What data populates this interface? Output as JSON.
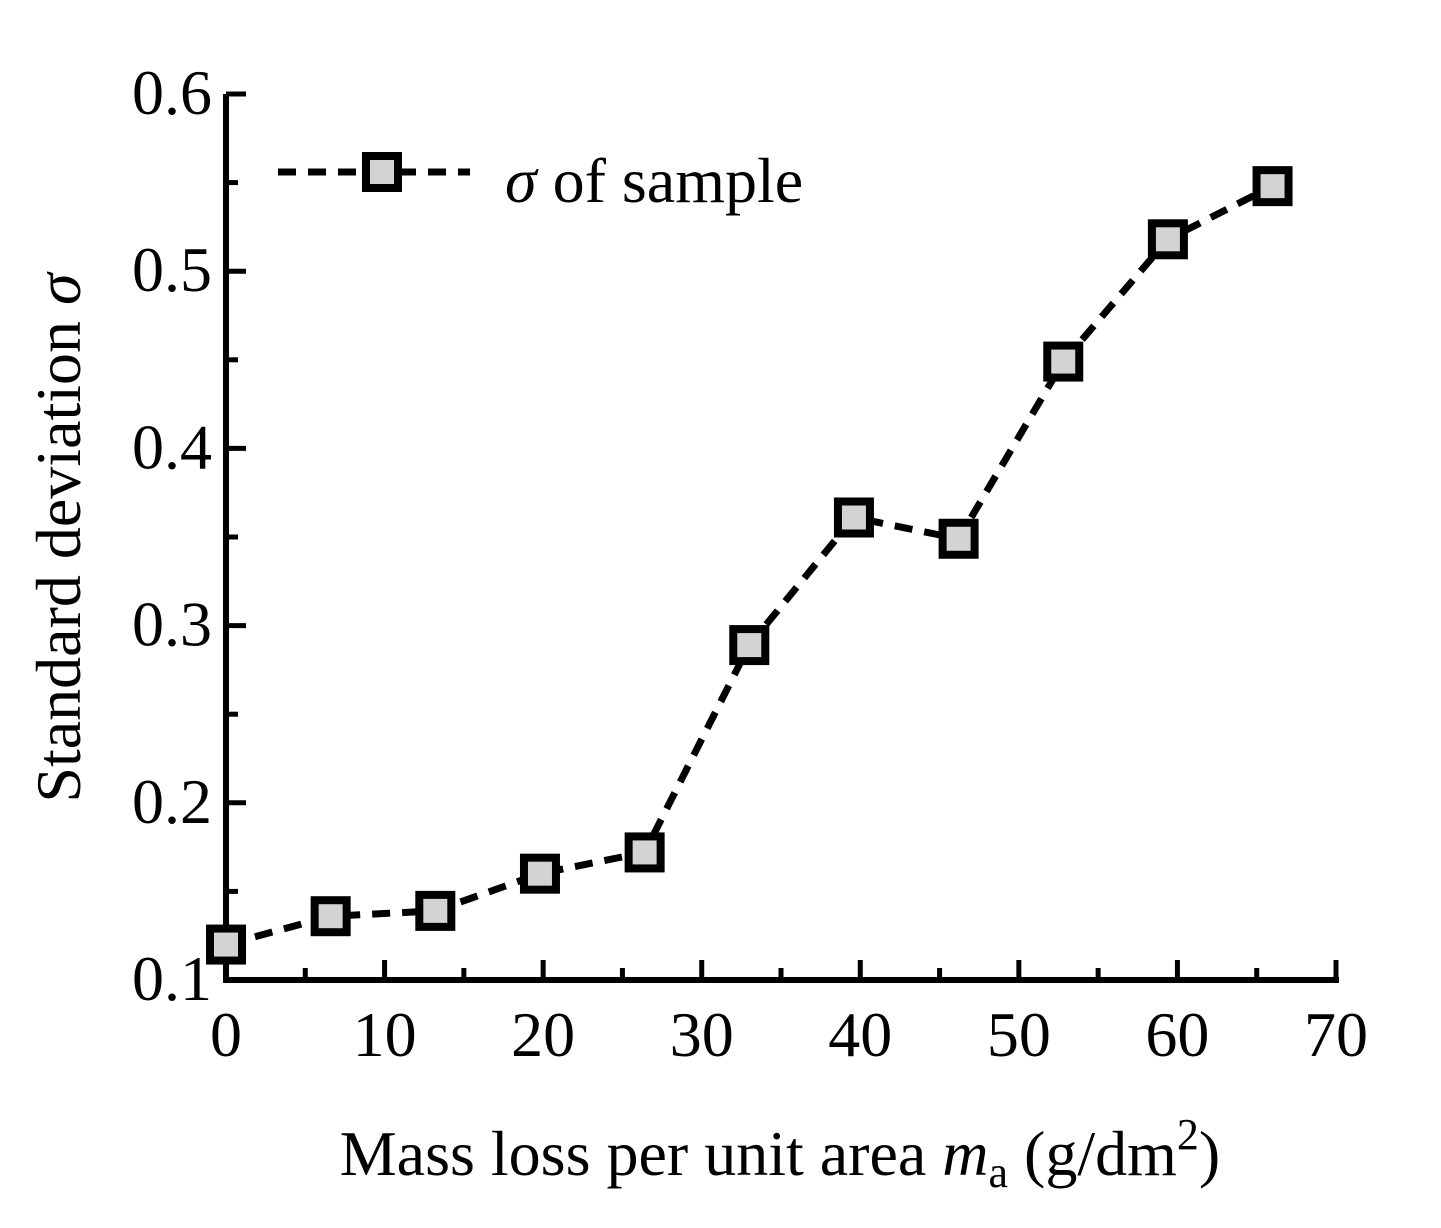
{
  "chart_data": {
    "type": "line",
    "title": "",
    "xlabel": {
      "main": "Mass loss per unit area ",
      "var": "m",
      "sub": "a",
      "unit_open": " (g/dm",
      "sup": "2",
      "unit_close": ")"
    },
    "ylabel": {
      "main": "Standard deviation ",
      "var": "σ"
    },
    "xlim": [
      0,
      70
    ],
    "ylim": [
      0.1,
      0.6
    ],
    "xticks": [
      0,
      10,
      20,
      30,
      40,
      50,
      60,
      70
    ],
    "xtick_labels": [
      "0",
      "10",
      "20",
      "30",
      "40",
      "50",
      "60",
      "70"
    ],
    "yticks": [
      0.1,
      0.2,
      0.3,
      0.4,
      0.5,
      0.6
    ],
    "ytick_labels": [
      "0.1",
      "0.2",
      "0.3",
      "0.4",
      "0.5",
      "0.6"
    ],
    "grid": false,
    "legend": {
      "position": "top-left",
      "var": "σ",
      "text": " of sample"
    },
    "series": [
      {
        "name": "σ of sample",
        "line_style": "dashed",
        "marker": "square",
        "marker_fill": "#d3d3d3",
        "color": "#000000",
        "x": [
          0,
          6.6,
          13.2,
          19.8,
          26.4,
          33.0,
          39.6,
          46.2,
          52.8,
          59.4,
          66.0
        ],
        "y": [
          0.12,
          0.136,
          0.139,
          0.16,
          0.172,
          0.289,
          0.361,
          0.349,
          0.449,
          0.518,
          0.548
        ]
      }
    ]
  }
}
